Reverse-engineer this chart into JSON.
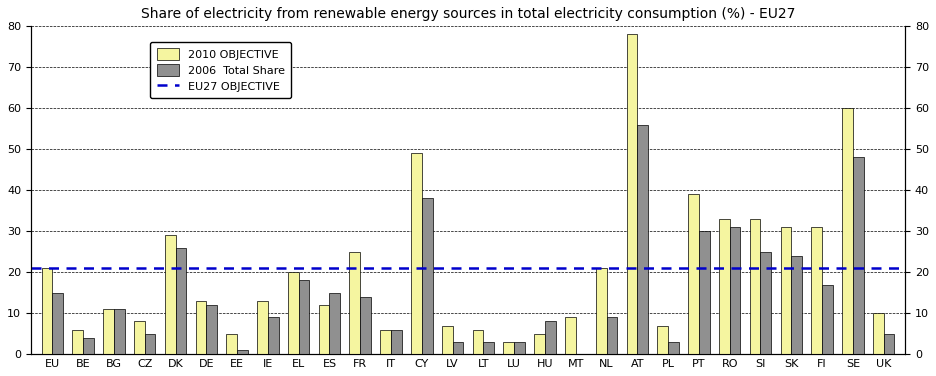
{
  "title": "Share of electricity from renewable energy sources in total electricity consumption (%) - EU27",
  "categories": [
    "EU",
    "BE",
    "BG",
    "CZ",
    "DK",
    "DE",
    "EE",
    "IE",
    "EL",
    "ES",
    "FR",
    "IT",
    "CY",
    "LV",
    "LT",
    "LU",
    "HU",
    "MT",
    "NL",
    "AT",
    "PL",
    "PT",
    "RO",
    "SI",
    "SK",
    "FI",
    "SE",
    "UK"
  ],
  "objective_2010": [
    21,
    6,
    11,
    8,
    29,
    13,
    5,
    13,
    20,
    12,
    25,
    6,
    49,
    7,
    6,
    3,
    5,
    9,
    21,
    78,
    7,
    39,
    33,
    33,
    31,
    31,
    60,
    10
  ],
  "total_share_2006": [
    15,
    4,
    11,
    5,
    26,
    12,
    1,
    9,
    18,
    15,
    14,
    6,
    38,
    3,
    3,
    3,
    8,
    0,
    9,
    56,
    3,
    30,
    31,
    25,
    24,
    17,
    48,
    5
  ],
  "eu27_objective": 21,
  "ylim": [
    0,
    80
  ],
  "yticks": [
    0,
    10,
    20,
    30,
    40,
    50,
    60,
    70,
    80
  ],
  "bar_color_objective": "#f5f5a0",
  "bar_color_share": "#909090",
  "line_color_eu27": "#0000cc",
  "background_color": "#ffffff",
  "legend_labels": [
    "2010 OBJECTIVE",
    "2006  Total Share",
    "EU27 OBJECTIVE"
  ],
  "title_fontsize": 10,
  "tick_fontsize": 8,
  "legend_fontsize": 8
}
